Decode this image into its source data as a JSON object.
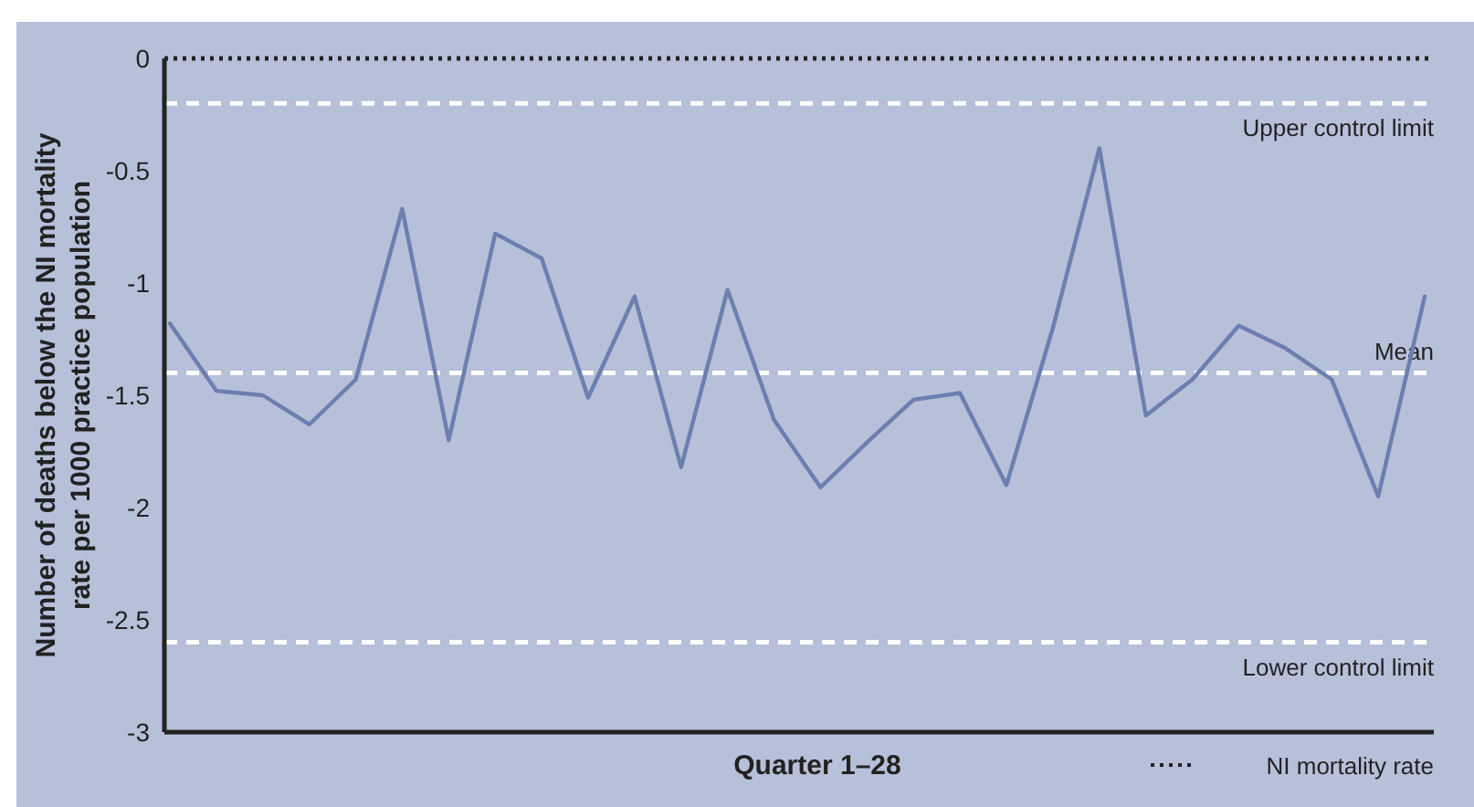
{
  "chart_data": {
    "type": "line",
    "xlabel": "Quarter 1–28",
    "ylabel": "Number of deaths below the NI mortality rate per 1000 practice population",
    "categories": [
      null,
      null,
      null,
      null,
      null,
      null,
      null,
      null,
      null,
      null,
      null,
      null,
      null,
      null,
      null,
      null,
      null,
      null,
      null,
      null,
      null,
      null,
      null,
      null,
      null,
      null,
      null,
      null
    ],
    "series": [
      {
        "color": "#6b7fb0",
        "values": [
          -1.18,
          -1.48,
          -1.5,
          -1.63,
          -1.43,
          -0.67,
          -1.7,
          -0.78,
          -0.89,
          -1.51,
          -1.06,
          -1.82,
          -1.03,
          -1.61,
          -1.91,
          -1.71,
          -1.52,
          -1.49,
          -1.9,
          -1.2,
          -0.4,
          -1.59,
          -1.43,
          -1.19,
          -1.29,
          -1.43,
          -1.95,
          -1.06
        ]
      }
    ],
    "ylim": [
      -3,
      0
    ],
    "yticks": [
      0,
      -0.5,
      -1,
      -1.5,
      -2,
      -2.5,
      -3
    ],
    "ref_lines": [
      {
        "axis": "y",
        "value": 0,
        "label": "NI mortality rate",
        "line_style": "dotted",
        "color": "#222222"
      },
      {
        "axis": "y",
        "value": -0.2,
        "label": "Upper control limit",
        "line_style": "dashed",
        "color": "#ffffff"
      },
      {
        "axis": "y",
        "value": -1.4,
        "label": "Mean",
        "line_style": "dashed",
        "color": "#ffffff"
      },
      {
        "axis": "y",
        "value": -2.6,
        "label": "Lower control limit",
        "line_style": "dashed",
        "color": "#ffffff"
      }
    ],
    "grid": false,
    "line_style": "solid",
    "marker": "none"
  }
}
